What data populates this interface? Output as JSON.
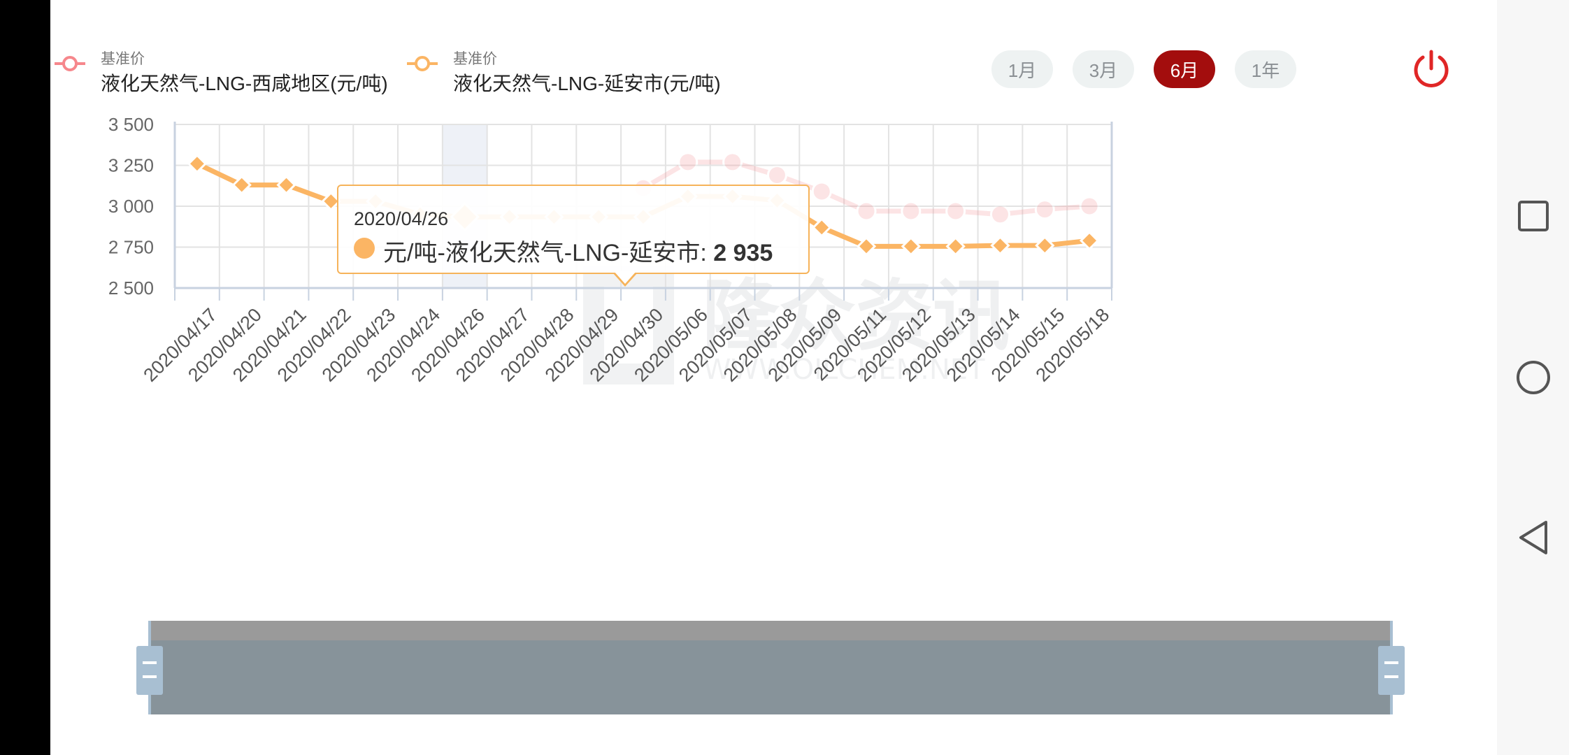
{
  "legend": [
    {
      "sub": "基准价",
      "label": "液化天然气-LNG-西咸地区(元/吨)",
      "color": "#f6878c"
    },
    {
      "sub": "基准价",
      "label": "液化天然气-LNG-延安市(元/吨)",
      "color": "#fbb564"
    }
  ],
  "range_buttons": [
    {
      "label": "1月",
      "active": false
    },
    {
      "label": "3月",
      "active": false
    },
    {
      "label": "6月",
      "active": true
    },
    {
      "label": "1年",
      "active": false
    }
  ],
  "colors": {
    "accent": "#a30d0d",
    "series_xixian": "#f6878c",
    "series_yanan": "#fbb564"
  },
  "tooltip": {
    "date": "2020/04/26",
    "series_label": "元/吨-液化天然气-LNG-延安市: ",
    "value": "2 935"
  },
  "watermark": {
    "text": "隆众资讯",
    "url_text": "WWW.OILCHEM.NET"
  },
  "chart_data": {
    "type": "line",
    "categories": [
      "2020/04/17",
      "2020/04/20",
      "2020/04/21",
      "2020/04/22",
      "2020/04/23",
      "2020/04/24",
      "2020/04/26",
      "2020/04/27",
      "2020/04/28",
      "2020/04/29",
      "2020/04/30",
      "2020/05/06",
      "2020/05/07",
      "2020/05/08",
      "2020/05/09",
      "2020/05/11",
      "2020/05/12",
      "2020/05/13",
      "2020/05/14",
      "2020/05/15",
      "2020/05/18"
    ],
    "yticks": [
      "3 500",
      "3 250",
      "3 000",
      "2 750",
      "2 500"
    ],
    "ylim": [
      2500,
      3500
    ],
    "highlight_index": 6,
    "series": [
      {
        "name": "液化天然气-LNG-西咸地区(元/吨)",
        "color": "#f6878c",
        "faded": true,
        "values": [
          null,
          null,
          null,
          null,
          null,
          null,
          null,
          null,
          null,
          null,
          3110,
          3270,
          3270,
          3190,
          3090,
          2970,
          2970,
          2970,
          2950,
          2980,
          3000
        ]
      },
      {
        "name": "液化天然气-LNG-延安市(元/吨)",
        "color": "#fbb564",
        "faded": false,
        "values": [
          3260,
          3130,
          3130,
          3030,
          3030,
          2950,
          2935,
          2935,
          2935,
          2935,
          2935,
          3060,
          3060,
          3035,
          2870,
          2755,
          2755,
          2755,
          2760,
          2760,
          2790
        ]
      }
    ]
  }
}
